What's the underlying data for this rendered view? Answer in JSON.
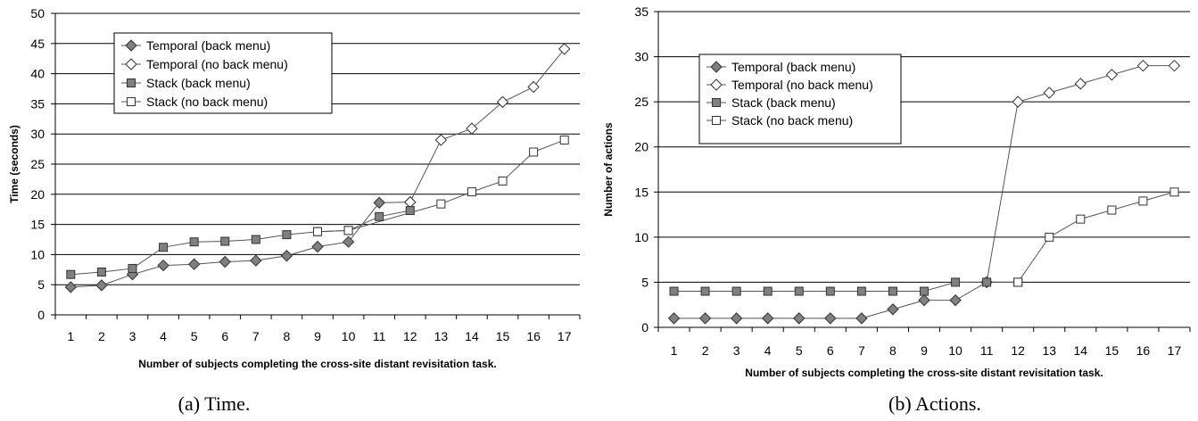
{
  "chart_data": [
    {
      "type": "line",
      "caption": "(a) Time.",
      "xlabel": "Number of subjects completing the cross-site distant revisitation task.",
      "ylabel": "Time (seconds)",
      "ylim": [
        0,
        50
      ],
      "yticks": [
        0,
        5,
        10,
        15,
        20,
        25,
        30,
        35,
        40,
        45,
        50
      ],
      "grid": true,
      "legend": "top-left",
      "categories": [
        "1",
        "2",
        "3",
        "4",
        "5",
        "6",
        "7",
        "8",
        "9",
        "10",
        "11",
        "12",
        "13",
        "14",
        "15",
        "16",
        "17"
      ],
      "series": [
        {
          "name": "Temporal (back menu)",
          "marker": "diamond",
          "fill": "#808080",
          "x": [
            1,
            2,
            3,
            4,
            5,
            6,
            7,
            8,
            9,
            10,
            11,
            12
          ],
          "values": [
            4.6,
            4.9,
            6.7,
            8.2,
            8.4,
            8.8,
            9.0,
            9.8,
            11.3,
            12.1,
            18.6,
            18.7
          ]
        },
        {
          "name": "Temporal (no back menu)",
          "marker": "diamond",
          "fill": "#ffffff",
          "x": [
            12,
            13,
            14,
            15,
            16,
            17
          ],
          "values": [
            18.7,
            29.0,
            30.9,
            35.3,
            37.8,
            44.1
          ]
        },
        {
          "name": "Stack (back menu)",
          "marker": "square",
          "fill": "#808080",
          "x": [
            1,
            2,
            3,
            4,
            5,
            6,
            7,
            8,
            9,
            10,
            11,
            12
          ],
          "values": [
            6.7,
            7.1,
            7.7,
            11.2,
            12.1,
            12.2,
            12.5,
            13.3,
            13.8,
            14.0,
            16.3,
            17.3
          ]
        },
        {
          "name": "Stack (no back menu)",
          "marker": "square",
          "fill": "#ffffff",
          "x": [
            9,
            10,
            13,
            14,
            15,
            16,
            17
          ],
          "values": [
            13.8,
            14.0,
            18.4,
            20.4,
            22.2,
            27.0,
            29.0
          ]
        }
      ]
    },
    {
      "type": "line",
      "caption": "(b) Actions.",
      "xlabel": "Number of subjects completing the cross-site distant revisitation task.",
      "ylabel": "Number of actions",
      "ylim": [
        0,
        35
      ],
      "yticks": [
        0,
        5,
        10,
        15,
        20,
        25,
        30,
        35
      ],
      "grid": true,
      "legend": "top-left",
      "categories": [
        "1",
        "2",
        "3",
        "4",
        "5",
        "6",
        "7",
        "8",
        "9",
        "10",
        "11",
        "12",
        "13",
        "14",
        "15",
        "16",
        "17"
      ],
      "series": [
        {
          "name": "Temporal (back menu)",
          "marker": "diamond",
          "fill": "#808080",
          "x": [
            1,
            2,
            3,
            4,
            5,
            6,
            7,
            8,
            9,
            10,
            11
          ],
          "values": [
            1,
            1,
            1,
            1,
            1,
            1,
            1,
            2,
            3,
            3,
            5
          ]
        },
        {
          "name": "Temporal (no back menu)",
          "marker": "diamond",
          "fill": "#ffffff",
          "x": [
            11,
            12,
            13,
            14,
            15,
            16,
            17
          ],
          "values": [
            5,
            25,
            26,
            27,
            28,
            29,
            29
          ]
        },
        {
          "name": "Stack (back menu)",
          "marker": "square",
          "fill": "#808080",
          "x": [
            1,
            2,
            3,
            4,
            5,
            6,
            7,
            8,
            9,
            10,
            11,
            12
          ],
          "values": [
            4,
            4,
            4,
            4,
            4,
            4,
            4,
            4,
            4,
            5,
            5,
            5
          ]
        },
        {
          "name": "Stack (no back menu)",
          "marker": "square",
          "fill": "#ffffff",
          "x": [
            12,
            13,
            14,
            15,
            16,
            17
          ],
          "values": [
            5,
            10,
            12,
            13,
            14,
            15
          ]
        }
      ]
    }
  ]
}
